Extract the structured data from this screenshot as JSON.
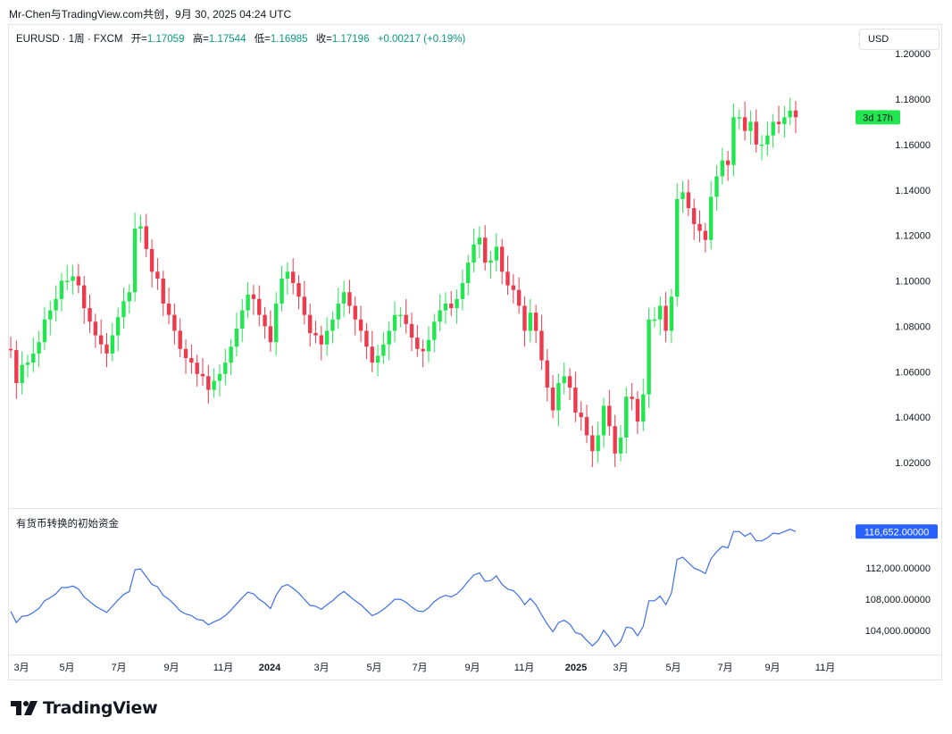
{
  "header": {
    "caption": "Mr-Chen与TradingView.com共创，9月 30, 2025 04:24 UTC"
  },
  "legend": {
    "symbol": "EURUSD · 1周 · FXCM",
    "open_label": "开=",
    "open_value": "1.17059",
    "high_label": "高=",
    "high_value": "1.17544",
    "low_label": "低=",
    "low_value": "1.16985",
    "close_label": "收=",
    "close_value": "1.17196",
    "change": "+0.00217 (+0.19%)"
  },
  "toolbar": {
    "currency": "USD"
  },
  "indicator": {
    "title": "有货币转换的初始资金",
    "last_value_label": "116,652.00000"
  },
  "colors": {
    "up": "#22e64f",
    "down": "#ed3a4d",
    "line": "#3d6ee6",
    "countdown_bg": "#22e64f",
    "last_value_bg": "#2962ff"
  },
  "countdown": "3d 17h",
  "brand": {
    "name": "TradingView",
    "icon": "tradingview-logo-icon"
  },
  "chart_data": [
    {
      "type": "candlestick",
      "title": "EURUSD · 1周 · FXCM",
      "y_ticks": [
        "1.20000",
        "1.18000",
        "1.16000",
        "1.14000",
        "1.12000",
        "1.10000",
        "1.08000",
        "1.06000",
        "1.04000",
        "1.02000"
      ],
      "y_tick_values": [
        1.2,
        1.18,
        1.16,
        1.14,
        1.12,
        1.1,
        1.08,
        1.06,
        1.04,
        1.02
      ],
      "ylim": [
        1.0,
        1.2034
      ],
      "x_ticks": [
        "3月",
        "5月",
        "7月",
        "9月",
        "11月",
        "2024",
        "3月",
        "5月",
        "7月",
        "9月",
        "11月",
        "2025",
        "3月",
        "5月",
        "7月",
        "9月",
        "11月"
      ],
      "x_tick_major": [
        false,
        false,
        false,
        false,
        false,
        true,
        false,
        false,
        false,
        false,
        false,
        true,
        false,
        false,
        false,
        false,
        false
      ],
      "grid": false,
      "close_series": [
        1.0695,
        1.055,
        1.063,
        1.064,
        1.068,
        1.073,
        1.083,
        1.087,
        1.092,
        1.1,
        1.1,
        1.102,
        1.098,
        1.088,
        1.082,
        1.076,
        1.072,
        1.068,
        1.076,
        1.084,
        1.091,
        1.095,
        1.123,
        1.124,
        1.114,
        1.104,
        1.101,
        1.09,
        1.085,
        1.078,
        1.07,
        1.066,
        1.064,
        1.059,
        1.058,
        1.052,
        1.056,
        1.059,
        1.064,
        1.071,
        1.079,
        1.087,
        1.094,
        1.092,
        1.085,
        1.08,
        1.073,
        1.09,
        1.101,
        1.104,
        1.099,
        1.093,
        1.085,
        1.077,
        1.076,
        1.072,
        1.078,
        1.083,
        1.09,
        1.095,
        1.089,
        1.083,
        1.078,
        1.071,
        1.064,
        1.067,
        1.072,
        1.078,
        1.085,
        1.085,
        1.081,
        1.075,
        1.07,
        1.069,
        1.074,
        1.082,
        1.087,
        1.09,
        1.088,
        1.092,
        1.099,
        1.108,
        1.116,
        1.119,
        1.108,
        1.109,
        1.115,
        1.104,
        1.098,
        1.096,
        1.089,
        1.078,
        1.086,
        1.078,
        1.065,
        1.053,
        1.043,
        1.055,
        1.058,
        1.053,
        1.042,
        1.04,
        1.032,
        1.025,
        1.032,
        1.045,
        1.036,
        1.024,
        1.031,
        1.049,
        1.048,
        1.038,
        1.05,
        1.083,
        1.083,
        1.089,
        1.078,
        1.093,
        1.136,
        1.139,
        1.132,
        1.125,
        1.122,
        1.118,
        1.137,
        1.146,
        1.153,
        1.151,
        1.172,
        1.172,
        1.166,
        1.17,
        1.16,
        1.16,
        1.164,
        1.17,
        1.169,
        1.172,
        1.175,
        1.172
      ]
    },
    {
      "type": "line",
      "title": "有货币转换的初始资金",
      "y_ticks": [
        "112,000.00000",
        "108,000.00000",
        "104,000.00000"
      ],
      "y_tick_values": [
        112000,
        108000,
        104000
      ],
      "ylim": [
        101890,
        118310
      ],
      "last_value": 116652,
      "grid": false
    }
  ]
}
